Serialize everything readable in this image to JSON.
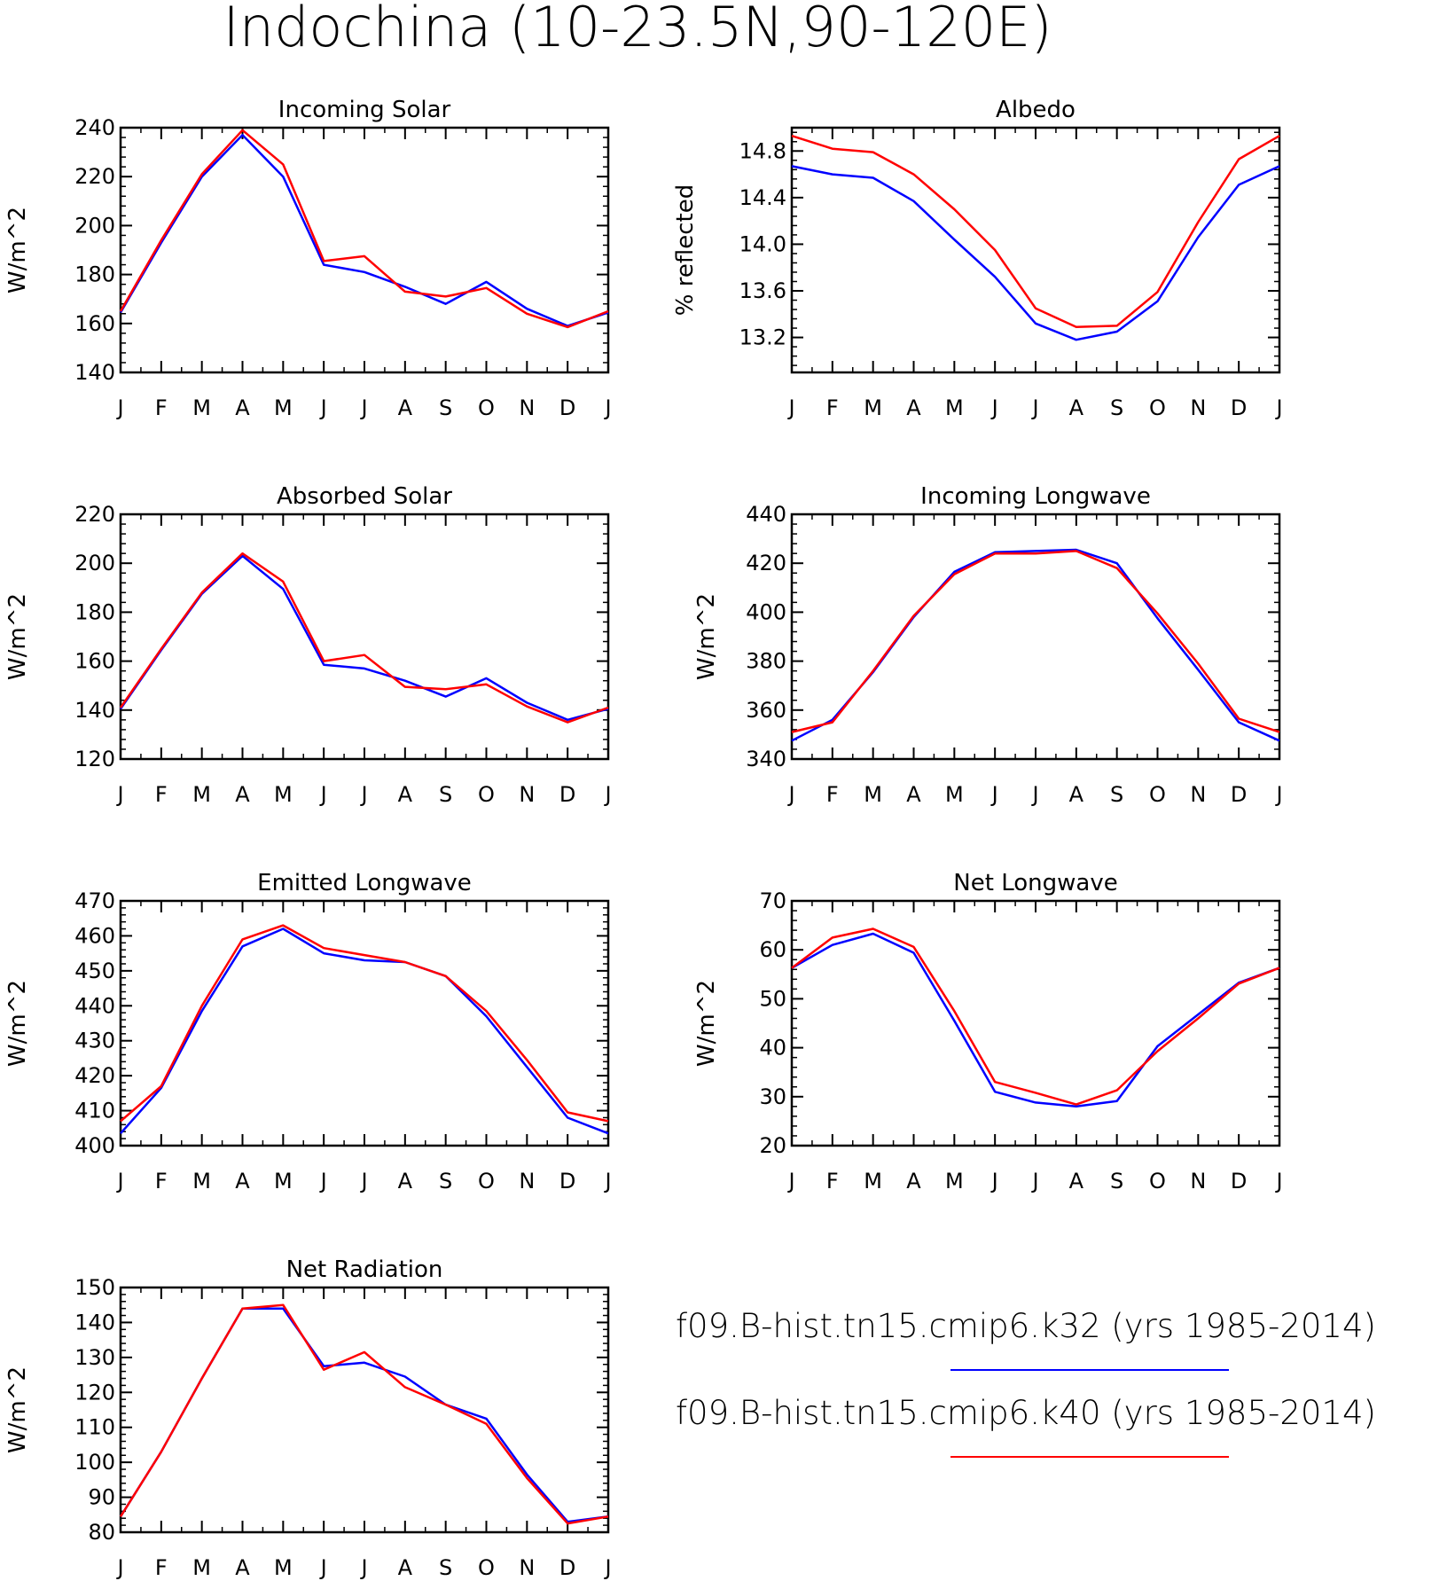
{
  "figure_title": "Indochina (10-23.5N,90-120E)",
  "legend": {
    "entries": [
      {
        "label": "f09.B-hist.tn15.cmip6.k32 (yrs 1985-2014)",
        "color": "#0000ff"
      },
      {
        "label": "f09.B-hist.tn15.cmip6.k40 (yrs 1985-2014)",
        "color": "#ff0000"
      }
    ]
  },
  "chart_data": [
    {
      "type": "line",
      "title": "Incoming Solar",
      "ylabel": "W/m^2",
      "categories": [
        "J",
        "F",
        "M",
        "A",
        "M",
        "J",
        "J",
        "A",
        "S",
        "O",
        "N",
        "D",
        "J"
      ],
      "ylim": [
        140,
        240
      ],
      "yticks": [
        140,
        160,
        180,
        200,
        220,
        240
      ],
      "series": [
        {
          "color": "#0000ff",
          "values": [
            164.5,
            193,
            220,
            237,
            220,
            184,
            181,
            175,
            168,
            177,
            166,
            159,
            164.5
          ]
        },
        {
          "color": "#ff0000",
          "values": [
            165,
            194,
            221,
            239,
            225,
            185.5,
            187.5,
            173,
            171,
            174.5,
            164,
            158.5,
            165
          ]
        }
      ]
    },
    {
      "type": "line",
      "title": "Albedo",
      "ylabel": "% reflected",
      "categories": [
        "J",
        "F",
        "M",
        "A",
        "M",
        "J",
        "J",
        "A",
        "S",
        "O",
        "N",
        "D",
        "J"
      ],
      "ylim": [
        12.9,
        15.0
      ],
      "yticks": [
        13.2,
        13.6,
        14.0,
        14.4,
        14.8
      ],
      "series": [
        {
          "color": "#0000ff",
          "values": [
            14.67,
            14.6,
            14.57,
            14.37,
            14.04,
            13.72,
            13.32,
            13.18,
            13.25,
            13.51,
            14.06,
            14.51,
            14.67
          ]
        },
        {
          "color": "#ff0000",
          "values": [
            14.93,
            14.82,
            14.79,
            14.6,
            14.3,
            13.95,
            13.45,
            13.29,
            13.3,
            13.59,
            14.19,
            14.73,
            14.93
          ]
        }
      ]
    },
    {
      "type": "line",
      "title": "Absorbed Solar",
      "ylabel": "W/m^2",
      "categories": [
        "J",
        "F",
        "M",
        "A",
        "M",
        "J",
        "J",
        "A",
        "S",
        "O",
        "N",
        "D",
        "J"
      ],
      "ylim": [
        120,
        220
      ],
      "yticks": [
        120,
        140,
        160,
        180,
        200,
        220
      ],
      "series": [
        {
          "color": "#0000ff",
          "values": [
            140.5,
            164.5,
            187.5,
            203,
            189.5,
            158.5,
            157,
            152,
            145.5,
            153,
            143,
            136,
            140.5
          ]
        },
        {
          "color": "#ff0000",
          "values": [
            141,
            165,
            188,
            204,
            192.5,
            160,
            162.5,
            149.5,
            148.5,
            150.5,
            141.5,
            135,
            141
          ]
        }
      ]
    },
    {
      "type": "line",
      "title": "Incoming Longwave",
      "ylabel": "W/m^2",
      "categories": [
        "J",
        "F",
        "M",
        "A",
        "M",
        "J",
        "J",
        "A",
        "S",
        "O",
        "N",
        "D",
        "J"
      ],
      "ylim": [
        340,
        440
      ],
      "yticks": [
        340,
        360,
        380,
        400,
        420,
        440
      ],
      "series": [
        {
          "color": "#0000ff",
          "values": [
            347.5,
            356,
            375.5,
            398,
            416.5,
            424.5,
            425,
            425.5,
            420,
            397.5,
            376.5,
            355,
            347.5
          ]
        },
        {
          "color": "#ff0000",
          "values": [
            351,
            355,
            376,
            398.5,
            415.5,
            424,
            424,
            425,
            418,
            399.5,
            379,
            356.5,
            351
          ]
        }
      ]
    },
    {
      "type": "line",
      "title": "Emitted Longwave",
      "ylabel": "W/m^2",
      "categories": [
        "J",
        "F",
        "M",
        "A",
        "M",
        "J",
        "J",
        "A",
        "S",
        "O",
        "N",
        "D",
        "J"
      ],
      "ylim": [
        400,
        470
      ],
      "yticks": [
        400,
        410,
        420,
        430,
        440,
        450,
        460,
        470
      ],
      "series": [
        {
          "color": "#0000ff",
          "values": [
            403.5,
            416.5,
            438.5,
            457,
            462,
            455,
            453,
            452.5,
            448.5,
            437,
            422.5,
            408,
            403.5
          ]
        },
        {
          "color": "#ff0000",
          "values": [
            407,
            417,
            440,
            459,
            463,
            456.5,
            454.5,
            452.5,
            448.5,
            438.5,
            424.5,
            409.5,
            407
          ]
        }
      ]
    },
    {
      "type": "line",
      "title": "Net Longwave",
      "ylabel": "W/m^2",
      "categories": [
        "J",
        "F",
        "M",
        "A",
        "M",
        "J",
        "J",
        "A",
        "S",
        "O",
        "N",
        "D",
        "J"
      ],
      "ylim": [
        20,
        70
      ],
      "yticks": [
        20,
        30,
        40,
        50,
        60,
        70
      ],
      "series": [
        {
          "color": "#0000ff",
          "values": [
            56.3,
            61,
            63.3,
            59.4,
            45.5,
            31,
            28.8,
            28,
            29.1,
            40.3,
            46.8,
            53.3,
            56.3
          ]
        },
        {
          "color": "#ff0000",
          "values": [
            56.3,
            62.5,
            64.3,
            60.6,
            47.5,
            33,
            30.8,
            28.4,
            31.3,
            39.3,
            46,
            53.1,
            56.3
          ]
        }
      ]
    },
    {
      "type": "line",
      "title": "Net Radiation",
      "ylabel": "W/m^2",
      "categories": [
        "J",
        "F",
        "M",
        "A",
        "M",
        "J",
        "J",
        "A",
        "S",
        "O",
        "N",
        "D",
        "J"
      ],
      "ylim": [
        80,
        150
      ],
      "yticks": [
        80,
        90,
        100,
        110,
        120,
        130,
        140,
        150
      ],
      "series": [
        {
          "color": "#0000ff",
          "values": [
            84.5,
            103,
            124,
            144,
            144,
            127.5,
            128.5,
            124.5,
            116.5,
            112.5,
            96.5,
            83,
            84.5
          ]
        },
        {
          "color": "#ff0000",
          "values": [
            84.5,
            103,
            124,
            144,
            145,
            126.5,
            131.5,
            121.5,
            116.5,
            111,
            95.5,
            82.5,
            84.5
          ]
        }
      ]
    }
  ]
}
